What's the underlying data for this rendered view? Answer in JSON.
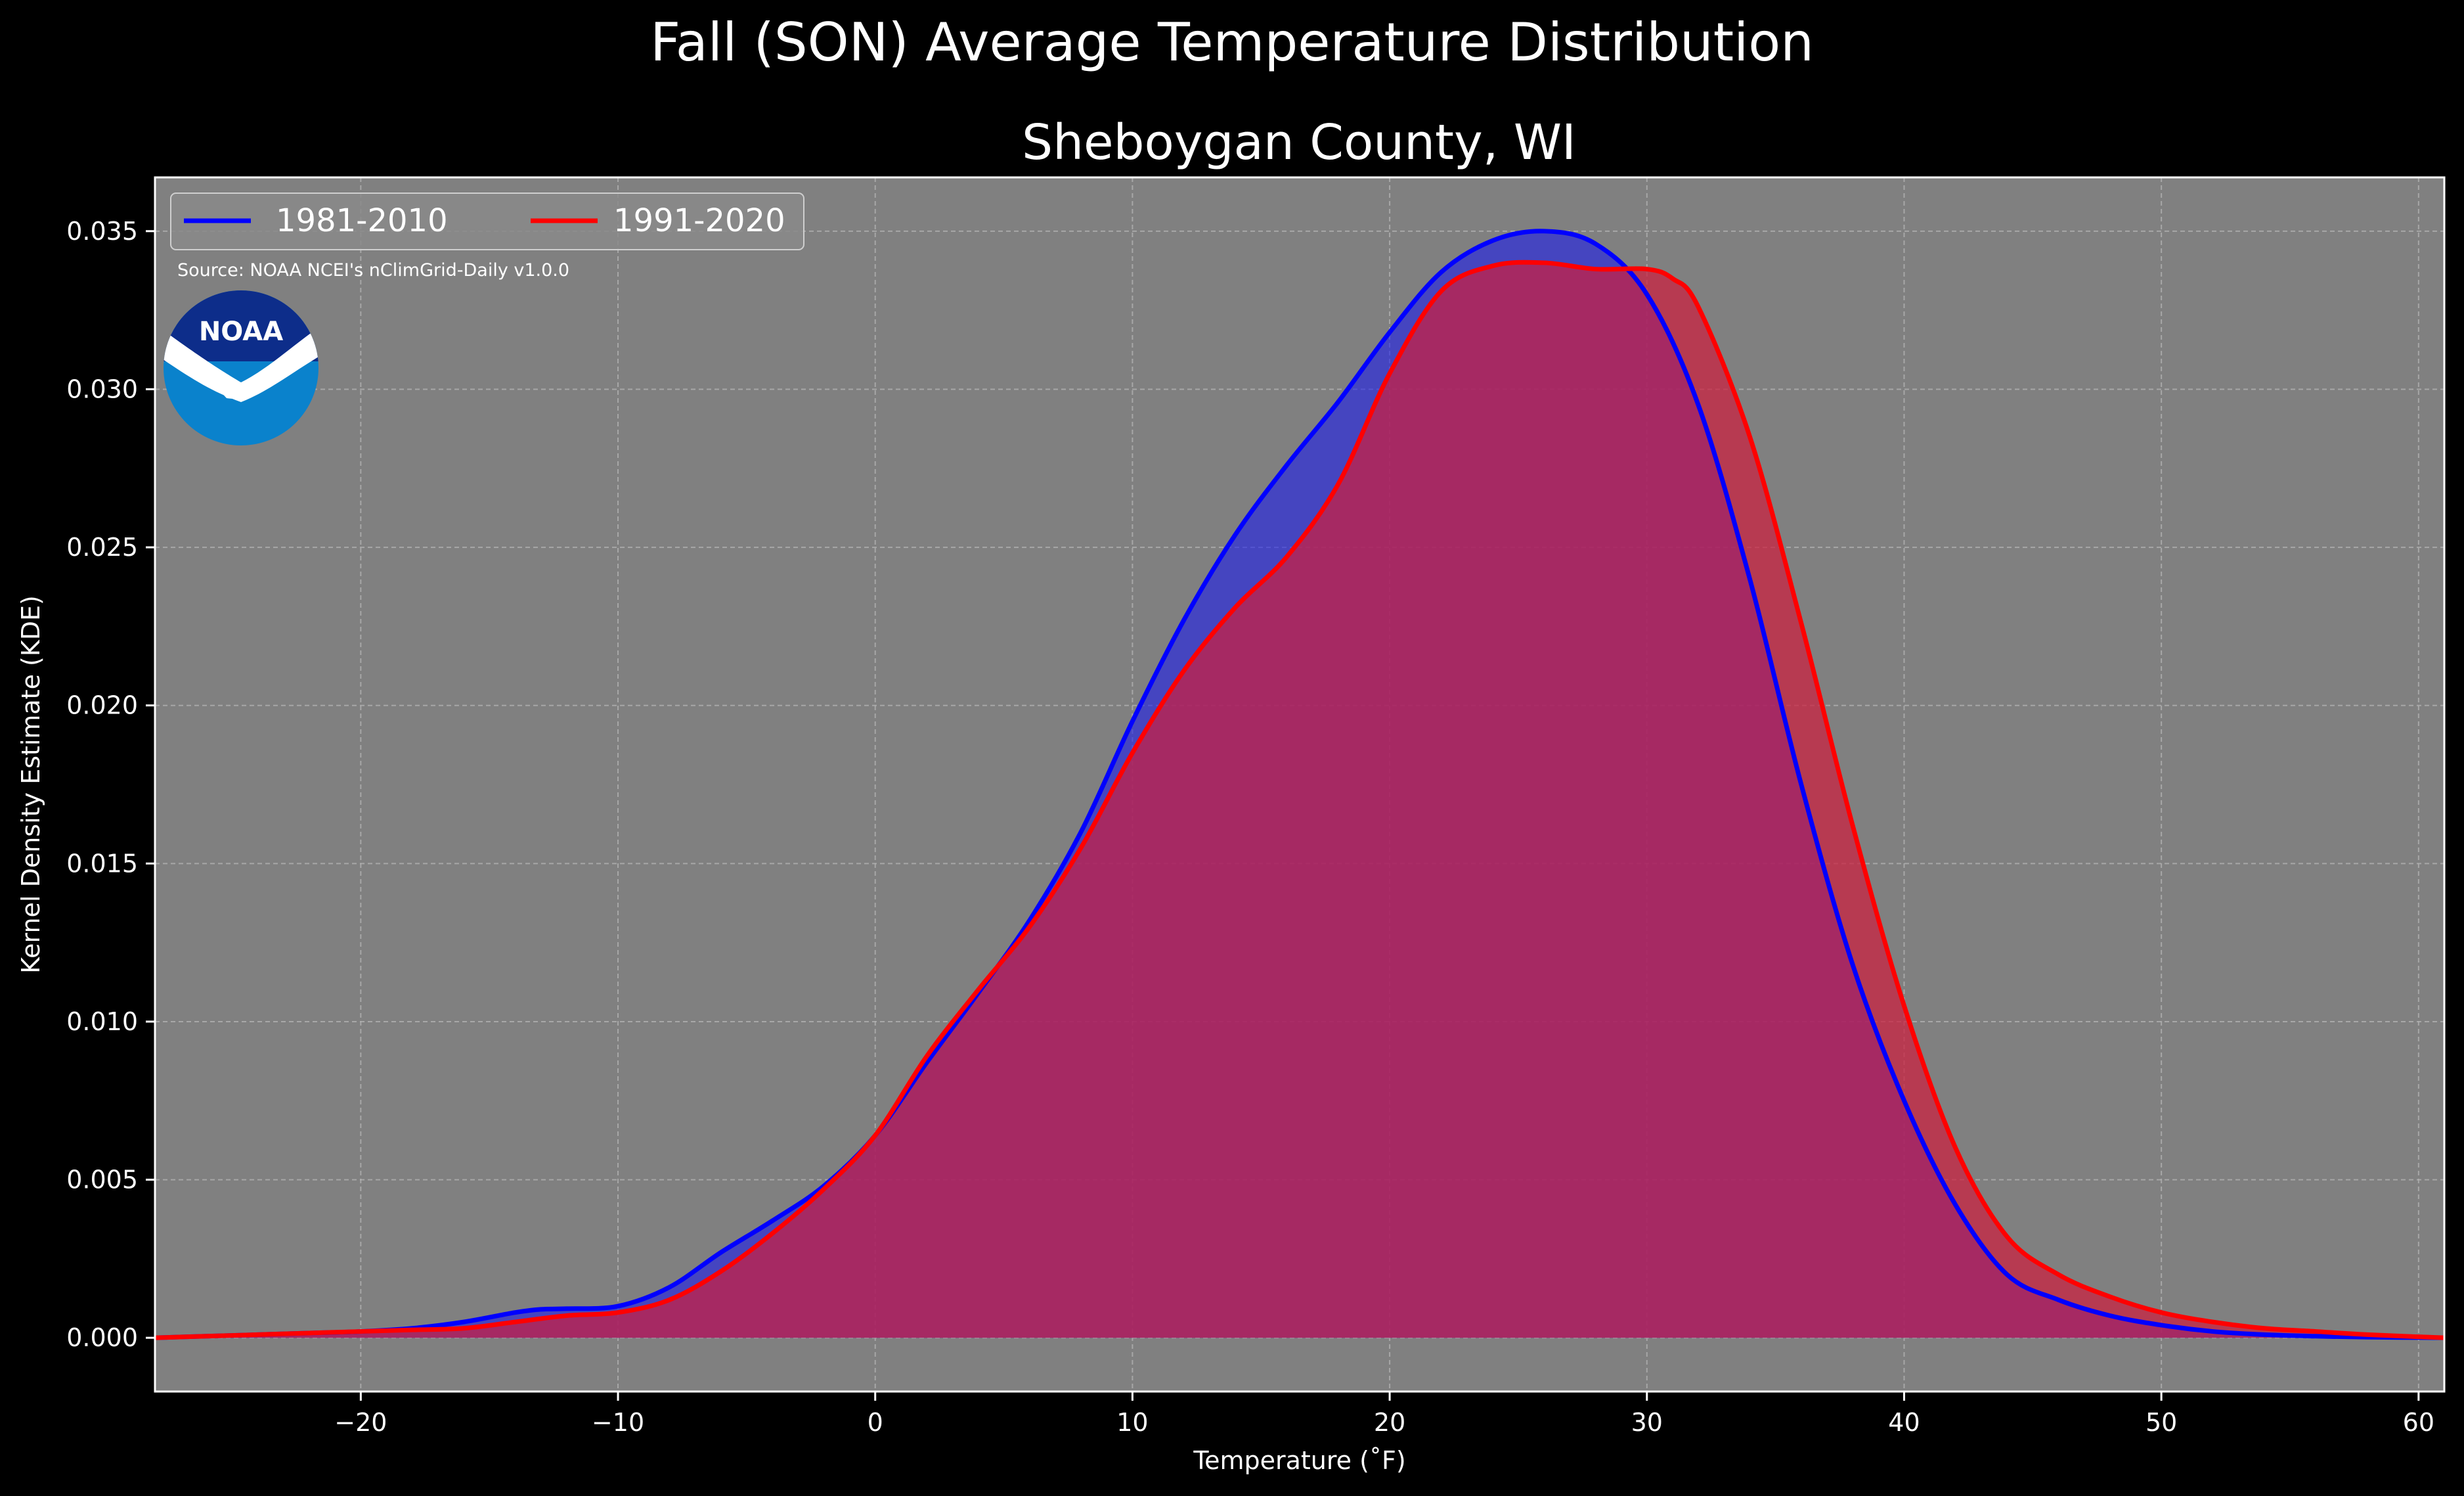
{
  "chart_data": {
    "type": "area",
    "title": "Fall (SON) Average Temperature Distribution",
    "subtitle": "Sheboygan County, WI",
    "xlabel": "Temperature (˚F)",
    "ylabel": "Kernel Density Estimate (KDE)",
    "xlim": [
      -28,
      61
    ],
    "ylim": [
      -0.0017,
      0.0367
    ],
    "xticks": [
      -20,
      -10,
      0,
      10,
      20,
      30,
      40,
      50,
      60
    ],
    "xtick_labels": [
      "−20",
      "−10",
      "0",
      "10",
      "20",
      "30",
      "40",
      "50",
      "60"
    ],
    "yticks": [
      0.0,
      0.005,
      0.01,
      0.015,
      0.02,
      0.025,
      0.03,
      0.035
    ],
    "ytick_labels": [
      "0.000",
      "0.005",
      "0.010",
      "0.015",
      "0.020",
      "0.025",
      "0.030",
      "0.035"
    ],
    "grid": true,
    "legend_position": "top-left",
    "source": "Source: NOAA NCEI's nClimGrid-Daily v1.0.0",
    "logo_text": "NOAA",
    "background_color": "#808080",
    "series": [
      {
        "name": "1981-2010",
        "color": "#0000ff",
        "fill_color": "#1a1aee",
        "fill_opacity": 0.58,
        "x": [
          -28,
          -26,
          -24,
          -22,
          -20,
          -18,
          -16,
          -14,
          -13,
          -12,
          -10,
          -8,
          -6,
          -4,
          -2,
          0,
          2,
          4,
          6,
          8,
          10,
          12,
          14,
          16,
          18,
          20,
          22,
          24,
          26,
          28,
          30,
          32,
          34,
          36,
          38,
          40,
          42,
          44,
          46,
          48,
          50,
          52,
          54,
          56,
          58,
          61
        ],
        "y": [
          0.0,
          5e-05,
          0.0001,
          0.00015,
          0.0002,
          0.0003,
          0.0005,
          0.0008,
          0.0009,
          0.00092,
          0.001,
          0.0016,
          0.0027,
          0.0037,
          0.0048,
          0.0064,
          0.0087,
          0.0109,
          0.0132,
          0.016,
          0.0195,
          0.0227,
          0.0254,
          0.0276,
          0.0296,
          0.0318,
          0.0337,
          0.0347,
          0.035,
          0.0346,
          0.033,
          0.0295,
          0.024,
          0.0175,
          0.0118,
          0.0075,
          0.0042,
          0.002,
          0.0012,
          0.0007,
          0.0004,
          0.0002,
          0.0001,
          5e-05,
          2e-05,
          0.0
        ]
      },
      {
        "name": "1991-2020",
        "color": "#ff0000",
        "fill_color": "#cc1f3e",
        "fill_opacity": 0.72,
        "x": [
          -28,
          -26,
          -24,
          -22,
          -20,
          -18,
          -16,
          -14,
          -12,
          -10,
          -8,
          -6,
          -4,
          -2,
          0,
          2,
          4,
          6,
          8,
          10,
          12,
          14,
          16,
          18,
          20,
          22,
          24,
          26,
          28,
          30,
          31,
          32,
          34,
          36,
          38,
          40,
          42,
          44,
          46,
          48,
          50,
          52,
          54,
          56,
          58,
          61
        ],
        "y": [
          0.0,
          5e-05,
          0.0001,
          0.00015,
          0.0002,
          0.00025,
          0.0003,
          0.0005,
          0.0007,
          0.0008,
          0.0012,
          0.0021,
          0.0033,
          0.0047,
          0.0064,
          0.0089,
          0.011,
          0.013,
          0.0155,
          0.0185,
          0.0211,
          0.0231,
          0.0247,
          0.027,
          0.0305,
          0.0331,
          0.0339,
          0.034,
          0.0338,
          0.0338,
          0.0335,
          0.0326,
          0.0285,
          0.0226,
          0.0162,
          0.0105,
          0.006,
          0.0032,
          0.002,
          0.0013,
          0.0008,
          0.0005,
          0.0003,
          0.0002,
          0.0001,
          0.0
        ]
      }
    ]
  }
}
